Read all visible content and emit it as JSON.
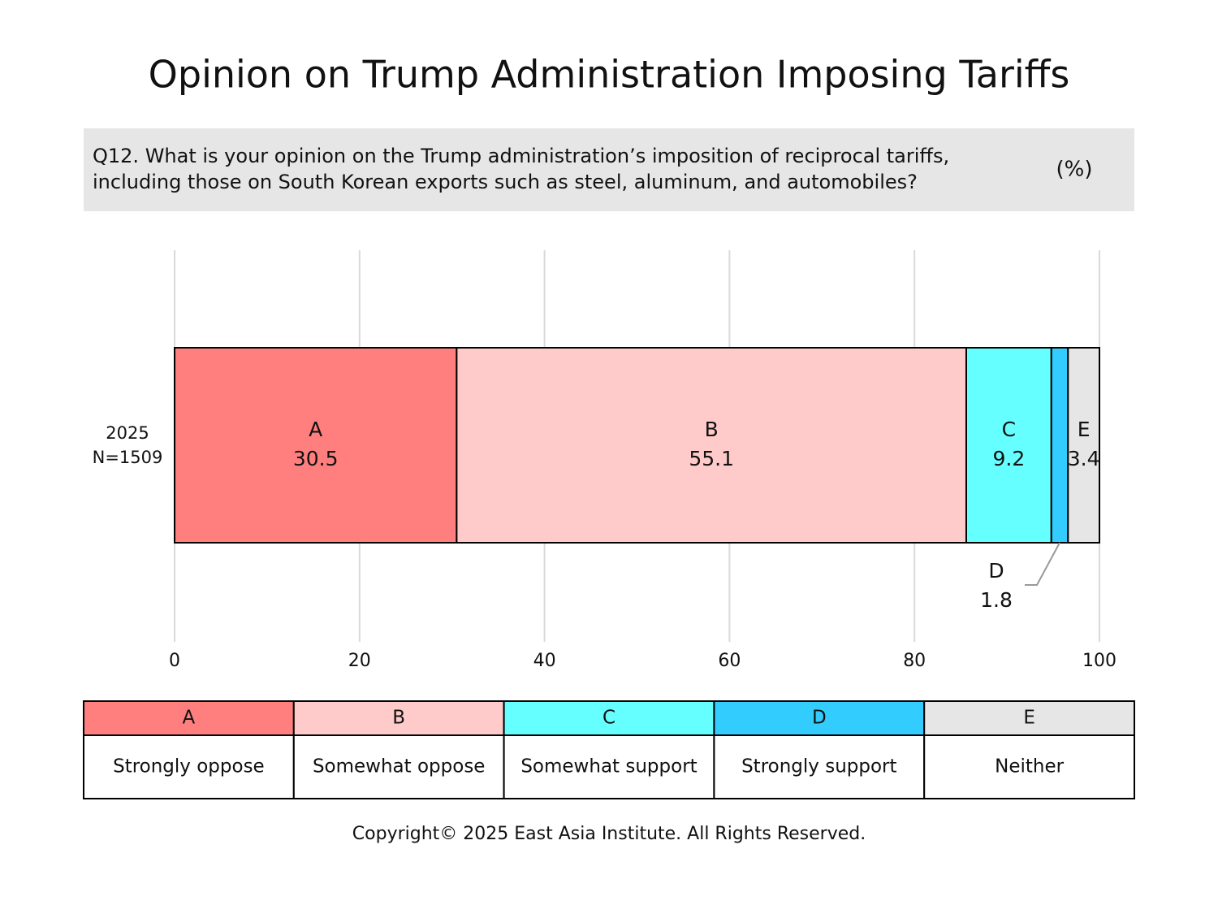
{
  "chart_data": {
    "type": "stacked-bar-h",
    "title": "Opinion on Trump Administration Imposing Tariffs",
    "subtitle": [
      "Q12. What is your opinion on the Trump administration’s imposition of reciprocal tariffs,",
      "including those on South Korean exports such as steel, aluminum, and automobiles?"
    ],
    "unit": "(%)",
    "categories": [
      "2025"
    ],
    "sample_sizes": [
      "N=1509"
    ],
    "series": [
      {
        "name": "A",
        "label": "Strongly oppose",
        "color": "#ff7f7f",
        "values": [
          30.5
        ]
      },
      {
        "name": "B",
        "label": "Somewhat oppose",
        "color": "#ffcaca",
        "values": [
          55.1
        ]
      },
      {
        "name": "C",
        "label": "Somewhat support",
        "color": "#66ffff",
        "values": [
          9.2
        ]
      },
      {
        "name": "D",
        "label": "Strongly support",
        "color": "#33ccff",
        "values": [
          1.8
        ]
      },
      {
        "name": "E",
        "label": "Neither",
        "color": "#e6e6e6",
        "values": [
          3.4
        ]
      }
    ],
    "xlim": [
      0,
      100
    ],
    "xticks": [
      0,
      20,
      40,
      60,
      80,
      100
    ],
    "grid": true,
    "copyright": "Copyright© 2025 East Asia Institute. All Rights Reserved."
  }
}
